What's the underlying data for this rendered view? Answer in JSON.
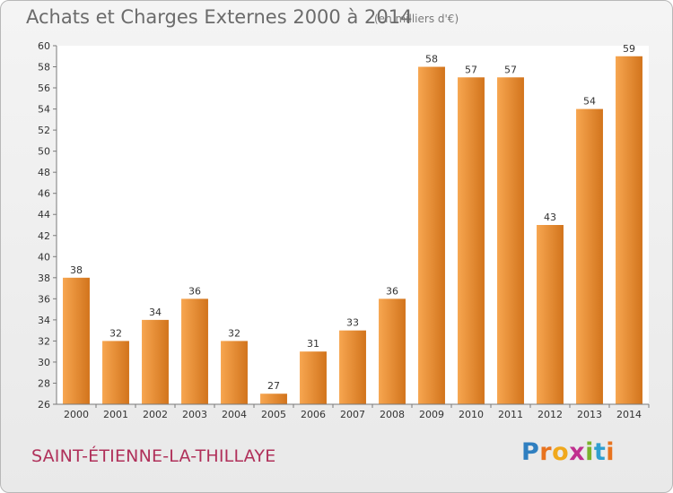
{
  "header": {
    "title": "Achats et Charges Externes 2000 à 2014",
    "subtitle": "(en milliers d'€)"
  },
  "footer": {
    "commune": "SAINT-ÉTIENNE-LA-THILLAYE",
    "logo_letters": [
      {
        "char": "P",
        "color": "#2f7fc0"
      },
      {
        "char": "r",
        "color": "#e8731e"
      },
      {
        "char": "o",
        "color": "#f0a81c"
      },
      {
        "char": "x",
        "color": "#c0308f"
      },
      {
        "char": "i",
        "color": "#7ab22c"
      },
      {
        "char": "t",
        "color": "#2f9fd0"
      },
      {
        "char": "i",
        "color": "#e8731e"
      }
    ]
  },
  "colors": {
    "bar_light": "#f7a650",
    "bar_dark": "#d2741c",
    "axis": "#7a7a7a",
    "plot_bg": "#ffffff"
  },
  "chart_data": {
    "type": "bar",
    "title": "Achats et Charges Externes 2000 à 2014",
    "subtitle": "(en milliers d'€)",
    "xlabel": "",
    "ylabel": "",
    "categories": [
      "2000",
      "2001",
      "2002",
      "2003",
      "2004",
      "2005",
      "2006",
      "2007",
      "2008",
      "2009",
      "2010",
      "2011",
      "2012",
      "2013",
      "2014"
    ],
    "values": [
      38,
      32,
      34,
      36,
      32,
      27,
      31,
      33,
      36,
      58,
      57,
      57,
      43,
      54,
      59
    ],
    "ylim": [
      26,
      60
    ],
    "yticks": [
      26,
      28,
      30,
      32,
      34,
      36,
      38,
      40,
      42,
      44,
      46,
      48,
      50,
      52,
      54,
      56,
      58,
      60
    ],
    "grid": false,
    "data_labels": true
  }
}
